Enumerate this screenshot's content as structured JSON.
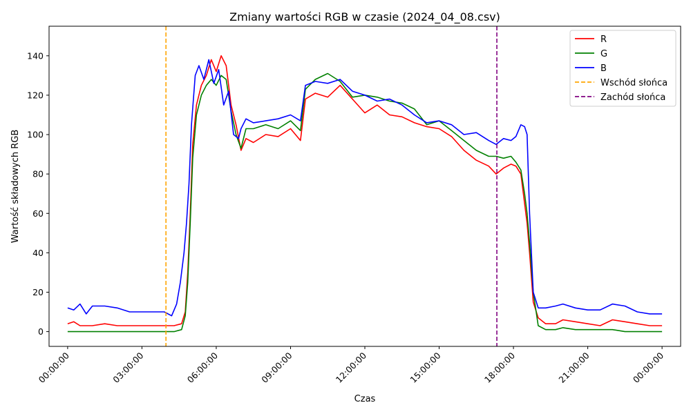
{
  "chart_data": {
    "type": "line",
    "title": "Zmiany wartości RGB w czasie (2024_04_08.csv)",
    "xlabel": "Czas",
    "ylabel": "Wartość składowych RGB",
    "xlim": [
      -0.75,
      24.75
    ],
    "ylim": [
      -7.5,
      155
    ],
    "x_ticks": [
      0,
      3,
      6,
      9,
      12,
      15,
      18,
      21,
      24
    ],
    "x_tick_labels": [
      "00:00:00",
      "03:00:00",
      "06:00:00",
      "09:00:00",
      "12:00:00",
      "15:00:00",
      "18:00:00",
      "21:00:00",
      "00:00:00"
    ],
    "y_ticks": [
      0,
      20,
      40,
      60,
      80,
      100,
      120,
      140
    ],
    "y_tick_labels": [
      "0",
      "20",
      "40",
      "60",
      "80",
      "100",
      "120",
      "140"
    ],
    "grid": false,
    "legend_position": "top-right",
    "x_unit": "hours since 00:00:00",
    "series": [
      {
        "name": "R",
        "color": "#ff0000",
        "x": [
          0,
          0.25,
          0.5,
          1,
          1.5,
          2,
          2.5,
          3,
          3.5,
          3.9,
          4.3,
          4.6,
          4.75,
          4.85,
          4.95,
          5.05,
          5.2,
          5.4,
          5.6,
          5.8,
          6.0,
          6.2,
          6.4,
          6.6,
          6.8,
          7.0,
          7.2,
          7.5,
          8.0,
          8.5,
          9.0,
          9.4,
          9.6,
          10.0,
          10.5,
          11.0,
          11.5,
          12.0,
          12.5,
          13.0,
          13.5,
          14.0,
          14.5,
          15.0,
          15.5,
          16.0,
          16.5,
          17.0,
          17.3,
          17.6,
          17.9,
          18.1,
          18.3,
          18.45,
          18.55,
          18.65,
          18.8,
          19.0,
          19.3,
          19.7,
          20.0,
          20.5,
          21.0,
          21.5,
          22.0,
          22.5,
          23.0,
          23.5,
          24.0
        ],
        "y": [
          4,
          5,
          3,
          3,
          4,
          3,
          3,
          3,
          3,
          3,
          3,
          4,
          10,
          30,
          60,
          95,
          115,
          125,
          130,
          138,
          132,
          140,
          135,
          115,
          105,
          92,
          98,
          96,
          100,
          99,
          103,
          97,
          118,
          121,
          119,
          125,
          118,
          111,
          115,
          110,
          109,
          106,
          104,
          103,
          99,
          92,
          87,
          84,
          80,
          83,
          85,
          84,
          80,
          65,
          55,
          40,
          15,
          7,
          4,
          4,
          6,
          5,
          4,
          3,
          6,
          5,
          4,
          3,
          3
        ]
      },
      {
        "name": "G",
        "color": "#008000",
        "x": [
          0,
          0.5,
          1,
          1.5,
          2,
          2.5,
          3,
          3.5,
          3.9,
          4.3,
          4.6,
          4.75,
          4.85,
          4.95,
          5.05,
          5.2,
          5.4,
          5.6,
          5.8,
          6.0,
          6.2,
          6.4,
          6.6,
          6.8,
          7.0,
          7.2,
          7.5,
          8.0,
          8.5,
          9.0,
          9.4,
          9.6,
          10.0,
          10.5,
          11.0,
          11.5,
          12.0,
          12.5,
          13.0,
          13.5,
          14.0,
          14.5,
          15.0,
          15.5,
          16.0,
          16.5,
          17.0,
          17.3,
          17.6,
          17.9,
          18.1,
          18.3,
          18.45,
          18.55,
          18.65,
          18.8,
          19.0,
          19.3,
          19.7,
          20.0,
          20.5,
          21.0,
          21.5,
          22.0,
          22.5,
          23.0,
          23.5,
          24.0
        ],
        "y": [
          0,
          0,
          0,
          0,
          0,
          0,
          0,
          0,
          0,
          0,
          1,
          8,
          25,
          55,
          88,
          110,
          120,
          125,
          128,
          125,
          130,
          128,
          112,
          100,
          93,
          103,
          103,
          105,
          103,
          107,
          102,
          123,
          128,
          131,
          127,
          119,
          120,
          119,
          117,
          116,
          113,
          105,
          107,
          102,
          97,
          92,
          89,
          89,
          88,
          89,
          86,
          82,
          70,
          60,
          45,
          20,
          3,
          1,
          1,
          2,
          1,
          1,
          1,
          1,
          0,
          0,
          0,
          0
        ]
      },
      {
        "name": "B",
        "color": "#0000ff",
        "x": [
          0,
          0.25,
          0.5,
          0.75,
          1,
          1.5,
          2,
          2.5,
          3,
          3.5,
          3.9,
          4.2,
          4.4,
          4.55,
          4.7,
          4.8,
          4.9,
          5.0,
          5.15,
          5.3,
          5.5,
          5.7,
          5.9,
          6.1,
          6.3,
          6.5,
          6.7,
          6.9,
          7.0,
          7.2,
          7.5,
          8.0,
          8.5,
          9.0,
          9.4,
          9.6,
          10.0,
          10.5,
          11.0,
          11.5,
          12.0,
          12.5,
          13.0,
          13.5,
          14.0,
          14.5,
          15.0,
          15.5,
          16.0,
          16.5,
          17.0,
          17.3,
          17.6,
          17.9,
          18.1,
          18.3,
          18.45,
          18.55,
          18.65,
          18.8,
          19.0,
          19.3,
          19.7,
          20.0,
          20.5,
          21.0,
          21.5,
          22.0,
          22.5,
          23.0,
          23.5,
          24.0
        ],
        "y": [
          12,
          11,
          14,
          9,
          13,
          13,
          12,
          10,
          10,
          10,
          10,
          8,
          14,
          25,
          40,
          55,
          75,
          105,
          130,
          135,
          128,
          138,
          126,
          133,
          115,
          122,
          100,
          98,
          103,
          108,
          106,
          107,
          108,
          110,
          107,
          125,
          127,
          126,
          128,
          122,
          120,
          117,
          118,
          115,
          110,
          106,
          107,
          105,
          100,
          101,
          97,
          95,
          98,
          97,
          99,
          105,
          104,
          100,
          60,
          20,
          12,
          12,
          13,
          14,
          12,
          11,
          11,
          14,
          13,
          10,
          9,
          9
        ]
      }
    ],
    "vertical_lines": [
      {
        "name": "Wschód słońca",
        "x": 3.97,
        "color": "#ffa500",
        "style": "dashed"
      },
      {
        "name": "Zachód słońca",
        "x": 17.33,
        "color": "#800080",
        "style": "dashed"
      }
    ],
    "legend": [
      {
        "label": "R",
        "color": "#ff0000",
        "style": "solid"
      },
      {
        "label": "G",
        "color": "#008000",
        "style": "solid"
      },
      {
        "label": "B",
        "color": "#0000ff",
        "style": "solid"
      },
      {
        "label": "Wschód słońca",
        "color": "#ffa500",
        "style": "dashed"
      },
      {
        "label": "Zachód słońca",
        "color": "#800080",
        "style": "dashed"
      }
    ]
  }
}
